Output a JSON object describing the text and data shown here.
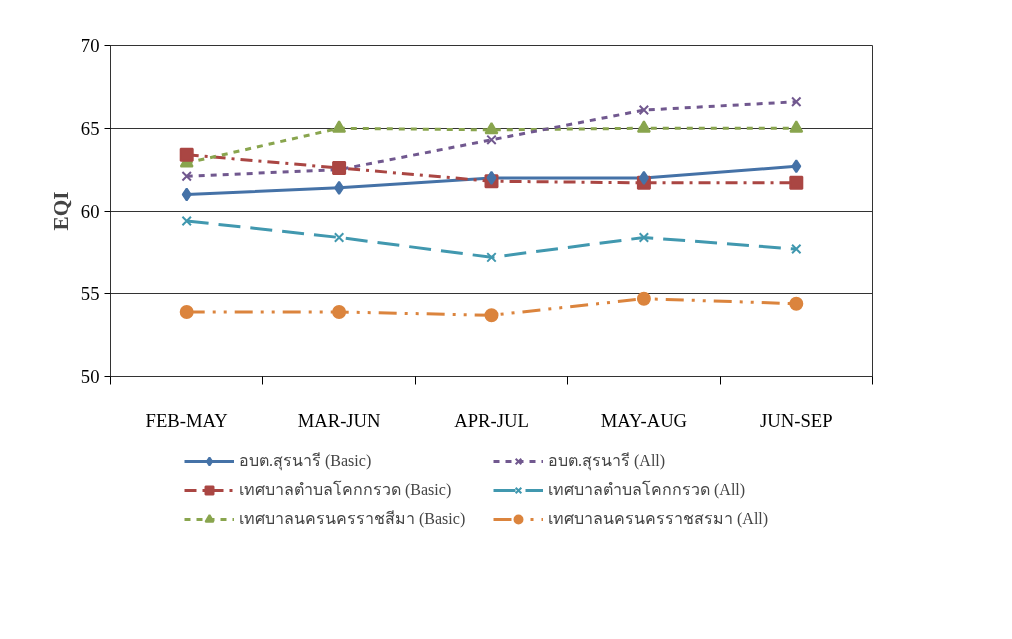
{
  "chart_data": {
    "type": "line",
    "ylabel": "EQI",
    "categories": [
      "FEB-MAY",
      "MAR-JUN",
      "APR-JUL",
      "MAY-AUG",
      "JUN-SEP"
    ],
    "ylim": [
      50,
      70
    ],
    "yticks": [
      50,
      55,
      60,
      65,
      70
    ],
    "grid": "y",
    "legend": "bottom",
    "series": [
      {
        "name": "อบต.สุรนารี (Basic)",
        "color": "#4572a7",
        "values": [
          61.0,
          61.4,
          62.0,
          62.0,
          62.7
        ],
        "marker": "diamond",
        "line_style": "solid"
      },
      {
        "name": "เทศบาลตำบลโคกกรวด (Basic)",
        "color": "#aa4643",
        "values": [
          63.4,
          62.6,
          61.8,
          61.7,
          61.7
        ],
        "marker": "square",
        "line_style": "dashdot"
      },
      {
        "name": "เทศบาลนครนครราชสีมา (Basic)",
        "color": "#89a54e",
        "values": [
          62.9,
          65.0,
          64.9,
          65.0,
          65.0
        ],
        "marker": "triangle",
        "line_style": "dashed"
      },
      {
        "name": "อบต.สุรนารี (All)",
        "color": "#71588f",
        "values": [
          62.1,
          62.5,
          64.3,
          66.1,
          66.6
        ],
        "marker": "cross",
        "line_style": "dashed"
      },
      {
        "name": "เทศบาลตำบลโคกกรวด (All)",
        "color": "#4198af",
        "values": [
          59.4,
          58.4,
          57.2,
          58.4,
          57.7
        ],
        "marker": "cross",
        "line_style": "longdash"
      },
      {
        "name": "เทศบาลนครนครราชสรมา (All)",
        "color": "#db843d",
        "values": [
          53.9,
          53.9,
          53.7,
          54.7,
          54.4
        ],
        "marker": "circle",
        "line_style": "dashdotdot"
      }
    ]
  }
}
